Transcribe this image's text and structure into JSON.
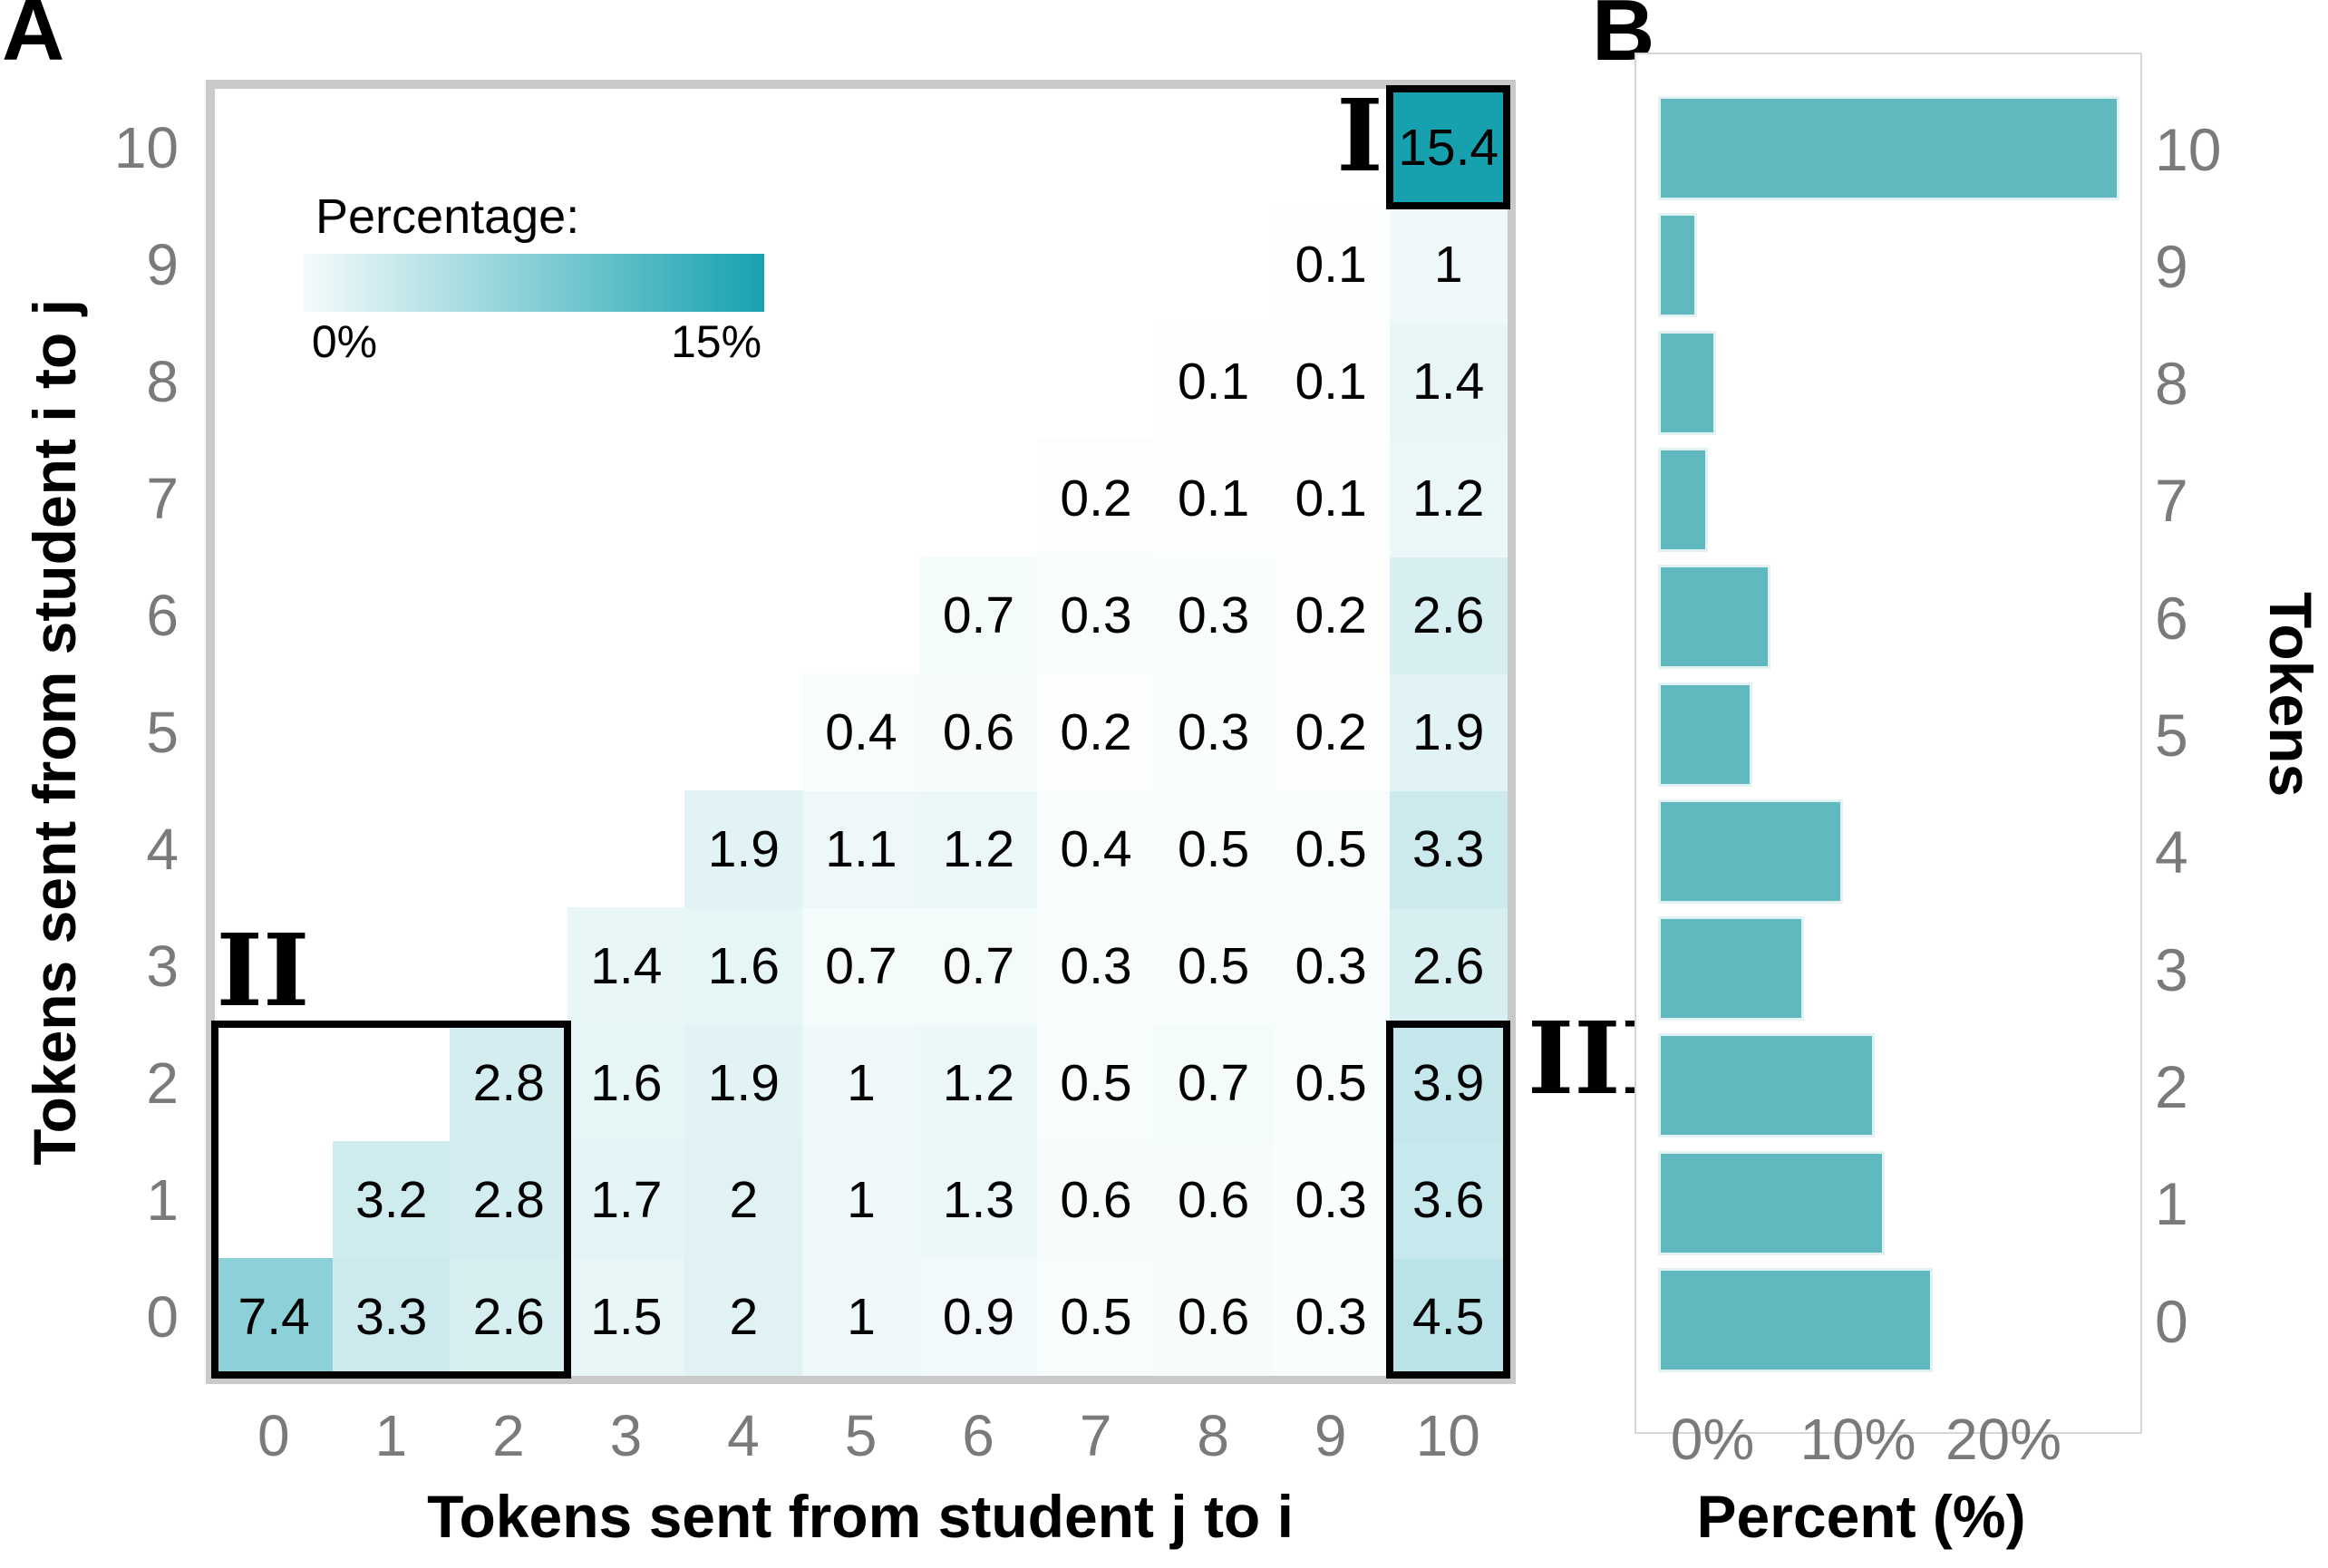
{
  "colors": {
    "heat_max": "#17a1af",
    "heat_min": "#ffffff",
    "bar_fill": "#5fb9bf",
    "bar_stroke": "#e3f3f4",
    "panel_a_frame": "#c9c9c9",
    "panel_b_frame": "#d6d6d6",
    "tick_text": "#7a7a7a"
  },
  "panel_a": {
    "label": "A",
    "legend": {
      "title": "Percentage:",
      "min_label": "0%",
      "max_label": "15%",
      "min_value": 0,
      "max_value": 15
    },
    "x_axis": {
      "title": "Tokens sent from student j to i",
      "ticks": [
        "0",
        "1",
        "2",
        "3",
        "4",
        "5",
        "6",
        "7",
        "8",
        "9",
        "10"
      ]
    },
    "y_axis": {
      "title": "Tokens sent from student i to j",
      "ticks": [
        "0",
        "1",
        "2",
        "3",
        "4",
        "5",
        "6",
        "7",
        "8",
        "9",
        "10"
      ]
    }
  },
  "panel_b": {
    "label": "B",
    "x_axis": {
      "title": "Percent (%)",
      "ticks": [
        "0%",
        "10%",
        "20%"
      ],
      "tick_values": [
        0,
        10,
        20
      ]
    },
    "y_axis": {
      "title": "Tokens",
      "ticks": [
        "10",
        "9",
        "8",
        "7",
        "6",
        "5",
        "4",
        "3",
        "2",
        "1",
        "0"
      ]
    }
  },
  "chart_data": [
    {
      "type": "heatmap",
      "xlabel": "Tokens sent from student j to i",
      "ylabel": "Tokens sent from student i to j",
      "x_values": [
        0,
        1,
        2,
        3,
        4,
        5,
        6,
        7,
        8,
        9,
        10
      ],
      "y_values": [
        0,
        1,
        2,
        3,
        4,
        5,
        6,
        7,
        8,
        9,
        10
      ],
      "colorbar": {
        "label": "Percentage:",
        "min": 0,
        "max": 15,
        "min_label": "0%",
        "max_label": "15%"
      },
      "matrix_percent_rows_0_to_10": [
        [
          7.4,
          3.3,
          2.6,
          1.5,
          2,
          1,
          0.9,
          0.5,
          0.6,
          0.3,
          4.5
        ],
        [
          null,
          3.2,
          2.8,
          1.7,
          2,
          1,
          1.3,
          0.6,
          0.6,
          0.3,
          3.6
        ],
        [
          null,
          null,
          2.8,
          1.6,
          1.9,
          1,
          1.2,
          0.5,
          0.7,
          0.5,
          3.9
        ],
        [
          null,
          null,
          null,
          1.4,
          1.6,
          0.7,
          0.7,
          0.3,
          0.5,
          0.3,
          2.6
        ],
        [
          null,
          null,
          null,
          null,
          1.9,
          1.1,
          1.2,
          0.4,
          0.5,
          0.5,
          3.3
        ],
        [
          null,
          null,
          null,
          null,
          null,
          0.4,
          0.6,
          0.2,
          0.3,
          0.2,
          1.9
        ],
        [
          null,
          null,
          null,
          null,
          null,
          null,
          0.7,
          0.3,
          0.3,
          0.2,
          2.6
        ],
        [
          null,
          null,
          null,
          null,
          null,
          null,
          null,
          0.2,
          0.1,
          0.1,
          1.2
        ],
        [
          null,
          null,
          null,
          null,
          null,
          null,
          null,
          null,
          0.1,
          0.1,
          1.4
        ],
        [
          null,
          null,
          null,
          null,
          null,
          null,
          null,
          null,
          null,
          0.1,
          1
        ],
        [
          null,
          null,
          null,
          null,
          null,
          null,
          null,
          null,
          null,
          null,
          15.4
        ]
      ],
      "annotations": [
        {
          "label": "I",
          "row_min": 10,
          "row_max": 10,
          "col_min": 10,
          "col_max": 10
        },
        {
          "label": "II",
          "row_min": 0,
          "row_max": 2,
          "col_min": 0,
          "col_max": 2
        },
        {
          "label": "III",
          "row_min": 0,
          "row_max": 2,
          "col_min": 10,
          "col_max": 10
        }
      ]
    },
    {
      "type": "bar",
      "orientation": "horizontal",
      "xlabel": "Percent (%)",
      "ylabel": "Tokens",
      "categories_top_to_bottom": [
        10,
        9,
        8,
        7,
        6,
        5,
        4,
        3,
        2,
        1,
        0
      ],
      "values_by_token": [
        18.9,
        15.6,
        14.9,
        10,
        12.7,
        6.5,
        7.7,
        3.4,
        4,
        2.7,
        31.7
      ],
      "xlim": [
        0,
        33
      ],
      "xticks": [
        0,
        10,
        20
      ],
      "grid": false,
      "legend_position": "none"
    }
  ]
}
